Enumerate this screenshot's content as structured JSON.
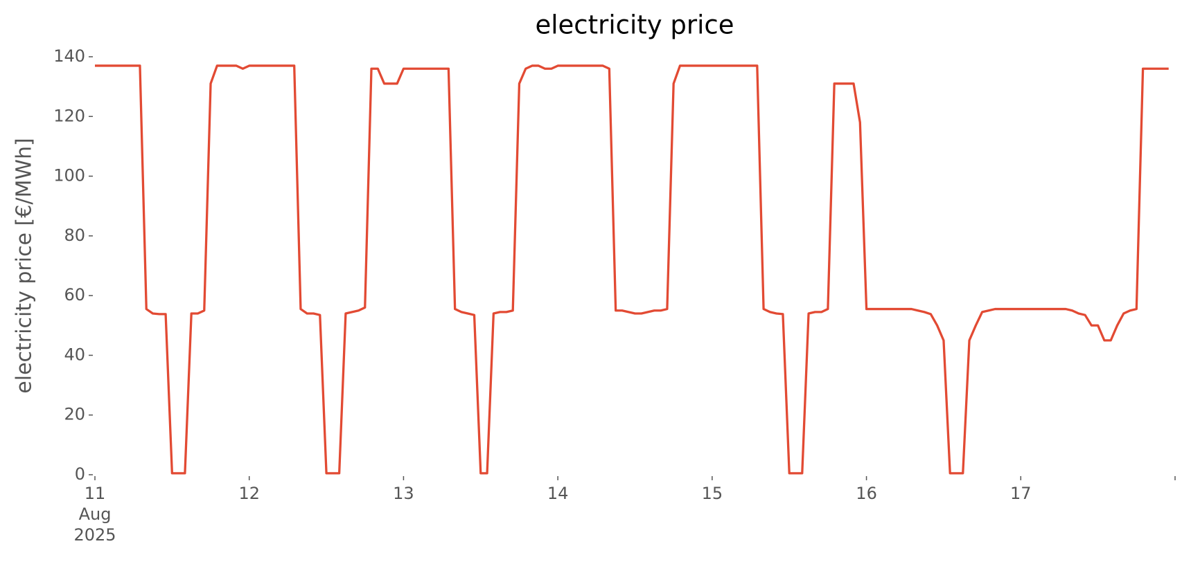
{
  "chart_data": {
    "type": "line",
    "title": "electricity price",
    "ylabel": "electricity price [€/MWh]",
    "x": [
      0,
      1,
      2,
      3,
      4,
      5,
      6,
      7,
      8,
      9,
      10,
      11,
      12,
      13,
      14,
      15,
      16,
      17,
      18,
      19,
      20,
      21,
      22,
      23,
      24,
      25,
      26,
      27,
      28,
      29,
      30,
      31,
      32,
      33,
      34,
      35,
      36,
      37,
      38,
      39,
      40,
      41,
      42,
      43,
      44,
      45,
      46,
      47,
      48,
      49,
      50,
      51,
      52,
      53,
      54,
      55,
      56,
      57,
      58,
      59,
      60,
      61,
      62,
      63,
      64,
      65,
      66,
      67,
      68,
      69,
      70,
      71,
      72,
      73,
      74,
      75,
      76,
      77,
      78,
      79,
      80,
      81,
      82,
      83,
      84,
      85,
      86,
      87,
      88,
      89,
      90,
      91,
      92,
      93,
      94,
      95,
      96,
      97,
      98,
      99,
      100,
      101,
      102,
      103,
      104,
      105,
      106,
      107,
      108,
      109,
      110,
      111,
      112,
      113,
      114,
      115,
      116,
      117,
      118,
      119,
      120,
      121,
      122,
      123,
      124,
      125,
      126,
      127,
      128,
      129,
      130,
      131,
      132,
      133,
      134,
      135,
      136,
      137,
      138,
      139,
      140,
      141,
      142,
      143,
      144,
      145,
      146,
      147,
      148,
      149,
      150,
      151,
      152,
      153,
      154,
      155,
      156,
      157,
      158,
      159,
      160,
      161,
      162,
      163,
      164,
      165,
      166,
      167
    ],
    "series": [
      {
        "name": "electricity price",
        "color": "#E24A33",
        "values": [
          137,
          137,
          137,
          137,
          137,
          137,
          137,
          137,
          55.5,
          54,
          53.8,
          53.8,
          0.5,
          0.5,
          0.5,
          54,
          54,
          55,
          131,
          137,
          137,
          137,
          137,
          136,
          137,
          137,
          137,
          137,
          137,
          137,
          137,
          137,
          55.5,
          54,
          54,
          53.5,
          0.5,
          0.5,
          0.5,
          54,
          54.5,
          55,
          56,
          136,
          136,
          131,
          131,
          131,
          136,
          136,
          136,
          136,
          136,
          136,
          136,
          136,
          55.5,
          54.5,
          54,
          53.5,
          0.5,
          0.5,
          54,
          54.5,
          54.5,
          55,
          131,
          136,
          137,
          137,
          136,
          136,
          137,
          137,
          137,
          137,
          137,
          137,
          137,
          137,
          136,
          55,
          55,
          54.5,
          54,
          54,
          54.5,
          55,
          55,
          55.5,
          131,
          137,
          137,
          137,
          137,
          137,
          137,
          137,
          137,
          137,
          137,
          137,
          137,
          137,
          55.5,
          54.5,
          54,
          53.8,
          0.5,
          0.5,
          0.5,
          54,
          54.5,
          54.5,
          55.5,
          131,
          131,
          131,
          131,
          118,
          55.5,
          55.5,
          55.5,
          55.5,
          55.5,
          55.5,
          55.5,
          55.5,
          55,
          54.5,
          53.8,
          50,
          45,
          0.5,
          0.5,
          0.5,
          45,
          50,
          54.5,
          55,
          55.5,
          55.5,
          55.5,
          55.5,
          55.5,
          55.5,
          55.5,
          55.5,
          55.5,
          55.5,
          55.5,
          55.5,
          55,
          54,
          53.5,
          50,
          50,
          45,
          45,
          50,
          54,
          55,
          55.5,
          136,
          136,
          136,
          136,
          136
        ]
      }
    ],
    "xlim": [
      0,
      168
    ],
    "xticks": [
      {
        "value": 0,
        "label": [
          "11",
          "Aug",
          "2025"
        ]
      },
      {
        "value": 24,
        "label": "12"
      },
      {
        "value": 48,
        "label": "13"
      },
      {
        "value": 72,
        "label": "14"
      },
      {
        "value": 96,
        "label": "15"
      },
      {
        "value": 120,
        "label": "16"
      },
      {
        "value": 144,
        "label": "17"
      },
      {
        "value": 168,
        "label": null
      }
    ],
    "ylim": [
      0,
      140
    ],
    "yticks": [
      0,
      20,
      40,
      60,
      80,
      100,
      120,
      140
    ],
    "grid": false
  }
}
